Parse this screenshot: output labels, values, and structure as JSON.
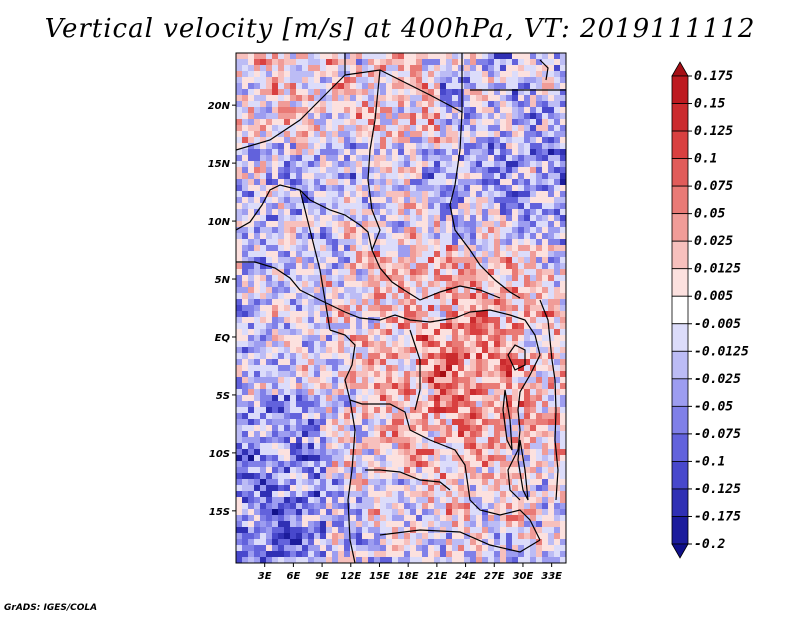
{
  "chart_data": {
    "type": "heatmap",
    "title": "Vertical velocity [m/s] at 400hPa, VT: 2019111112",
    "variable": "Vertical velocity",
    "units": "m/s",
    "level": "400hPa",
    "valid_time": "2019111112",
    "x_ticks": [
      "3E",
      "6E",
      "9E",
      "12E",
      "15E",
      "18E",
      "21E",
      "24E",
      "27E",
      "30E",
      "33E"
    ],
    "x_tick_values": [
      3,
      6,
      9,
      12,
      15,
      18,
      21,
      24,
      27,
      30,
      33
    ],
    "y_ticks": [
      "20N",
      "15N",
      "10N",
      "5N",
      "EQ",
      "5S",
      "10S",
      "15S"
    ],
    "y_tick_values": [
      20,
      15,
      10,
      5,
      0,
      -5,
      -10,
      -15
    ],
    "lon_range": [
      0,
      34.5
    ],
    "lat_range": [
      -19.5,
      24.5
    ],
    "colorbar_levels": [
      "0.175",
      "0.15",
      "0.125",
      "0.1",
      "0.075",
      "0.05",
      "0.025",
      "0.0125",
      "0.005",
      "-0.005",
      "-0.0125",
      "-0.025",
      "-0.05",
      "-0.075",
      "-0.1",
      "-0.125",
      "-0.175",
      "-0.2"
    ],
    "colorbar_colors": [
      "#a50f15",
      "#bd1a20",
      "#cb2b2e",
      "#d94040",
      "#e15c5a",
      "#e97a76",
      "#f09c98",
      "#f7c0bd",
      "#fce1df",
      "#ffffff",
      "#dcdcfa",
      "#bcbcf5",
      "#9d9df0",
      "#8080e8",
      "#6262dc",
      "#4848cc",
      "#3030b4",
      "#1c1c9c",
      "#10108a"
    ]
  },
  "credit": "GrADS: IGES/COLA"
}
